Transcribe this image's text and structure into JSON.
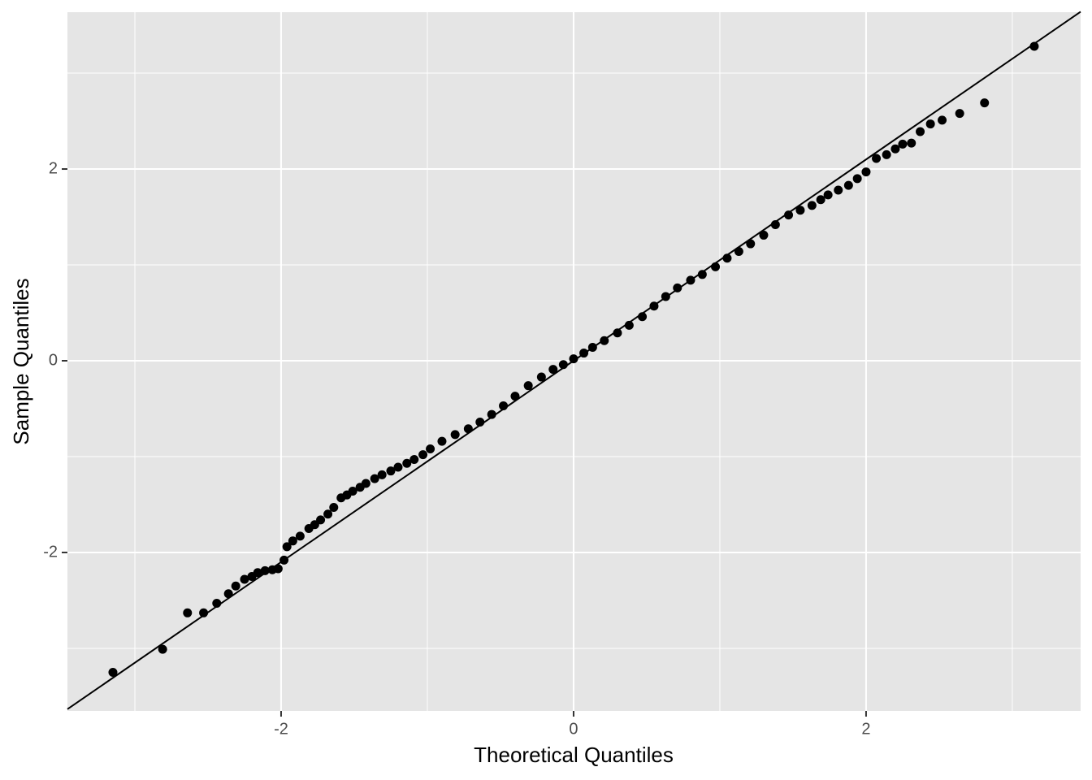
{
  "chart_data": {
    "type": "scatter",
    "xlabel": "Theoretical Quantiles",
    "ylabel": "Sample Quantiles",
    "x": [
      -3.15,
      -2.81,
      -2.64,
      -2.53,
      -2.44,
      -2.36,
      -2.31,
      -2.25,
      -2.2,
      -2.16,
      -2.11,
      -2.06,
      -2.02,
      -1.98,
      -1.96,
      -1.92,
      -1.87,
      -1.81,
      -1.77,
      -1.73,
      -1.68,
      -1.64,
      -1.59,
      -1.55,
      -1.51,
      -1.46,
      -1.42,
      -1.36,
      -1.31,
      -1.25,
      -1.2,
      -1.14,
      -1.09,
      -1.03,
      -0.98,
      -0.9,
      -0.81,
      -0.72,
      -0.64,
      -0.56,
      -0.48,
      -0.4,
      -0.31,
      -0.22,
      -0.14,
      -0.07,
      0,
      0.07,
      0.13,
      0.21,
      0.3,
      0.38,
      0.47,
      0.55,
      0.63,
      0.71,
      0.8,
      0.88,
      0.97,
      1.05,
      1.13,
      1.21,
      1.3,
      1.38,
      1.47,
      1.55,
      1.63,
      1.69,
      1.74,
      1.81,
      1.88,
      1.94,
      2.0,
      2.07,
      2.14,
      2.2,
      2.25,
      2.31,
      2.37,
      2.44,
      2.52,
      2.64,
      2.81,
      3.15
    ],
    "values": [
      -3.25,
      -3.01,
      -2.63,
      -2.63,
      -2.53,
      -2.43,
      -2.35,
      -2.28,
      -2.25,
      -2.21,
      -2.19,
      -2.18,
      -2.17,
      -2.08,
      -1.94,
      -1.88,
      -1.83,
      -1.75,
      -1.71,
      -1.66,
      -1.6,
      -1.53,
      -1.43,
      -1.4,
      -1.36,
      -1.32,
      -1.28,
      -1.23,
      -1.19,
      -1.15,
      -1.11,
      -1.07,
      -1.03,
      -0.98,
      -0.92,
      -0.84,
      -0.77,
      -0.71,
      -0.64,
      -0.56,
      -0.47,
      -0.37,
      -0.26,
      -0.17,
      -0.09,
      -0.04,
      0.02,
      0.08,
      0.14,
      0.21,
      0.29,
      0.37,
      0.46,
      0.57,
      0.67,
      0.76,
      0.84,
      0.9,
      0.98,
      1.07,
      1.14,
      1.22,
      1.31,
      1.42,
      1.52,
      1.57,
      1.62,
      1.68,
      1.73,
      1.78,
      1.83,
      1.9,
      1.97,
      2.11,
      2.15,
      2.21,
      2.26,
      2.27,
      2.39,
      2.47,
      2.51,
      2.58,
      2.69,
      3.28
    ],
    "color": "#000000",
    "reference_line": {
      "intercept": 0,
      "slope": 1.05
    },
    "xlim": [
      -3.461,
      3.467
    ],
    "ylim": [
      -3.653,
      3.636
    ],
    "xticks": [
      -2,
      0,
      2
    ],
    "yticks": [
      -2,
      0,
      2
    ],
    "x_minor_grid": [
      -3,
      -1,
      1,
      3
    ],
    "y_minor_grid": [
      -3,
      -1,
      1,
      3
    ],
    "grid": true
  }
}
